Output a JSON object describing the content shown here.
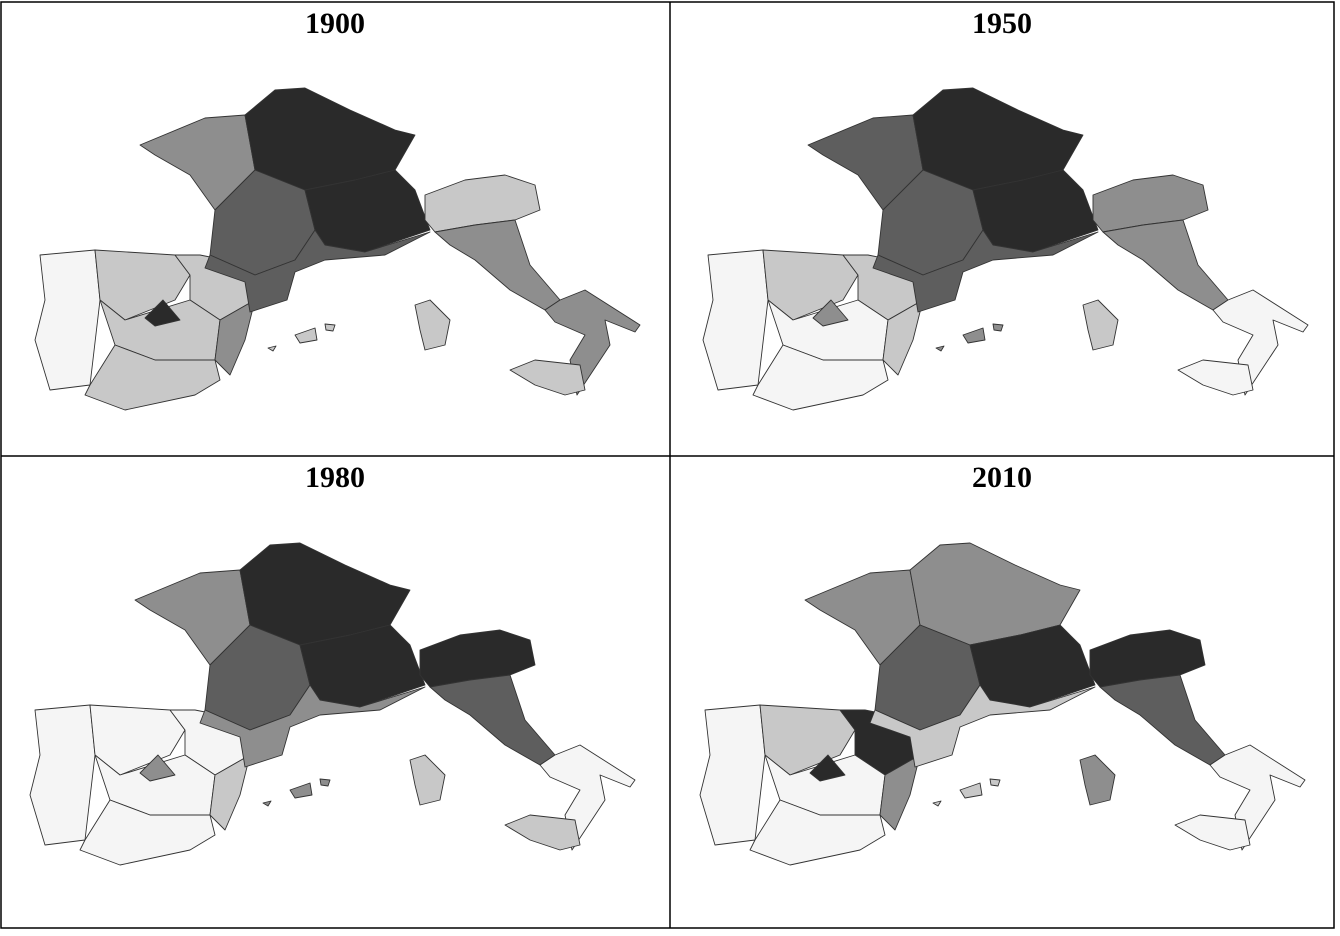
{
  "panels": [
    {
      "title": "1900"
    },
    {
      "title": "1950"
    },
    {
      "title": "1980"
    },
    {
      "title": "2010"
    }
  ]
}
